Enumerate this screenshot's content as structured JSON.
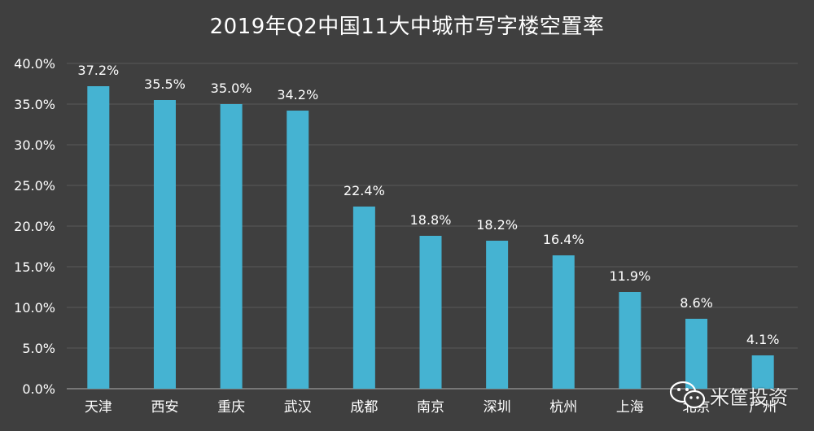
{
  "chart_data": {
    "type": "bar",
    "title": "2019年Q2中国11大中城市写字楼空置率",
    "categories": [
      "天津",
      "西安",
      "重庆",
      "武汉",
      "成都",
      "南京",
      "深圳",
      "杭州",
      "上海",
      "北京",
      "广州"
    ],
    "values": [
      37.2,
      35.5,
      35.0,
      34.2,
      22.4,
      18.8,
      18.2,
      16.4,
      11.9,
      8.6,
      4.1
    ],
    "data_labels": [
      "37.2%",
      "35.5%",
      "35.0%",
      "34.2%",
      "22.4%",
      "18.8%",
      "18.2%",
      "16.4%",
      "11.9%",
      "8.6%",
      "4.1%"
    ],
    "yticks": [
      0,
      5,
      10,
      15,
      20,
      25,
      30,
      35,
      40
    ],
    "ytick_labels": [
      "0.0%",
      "5.0%",
      "10.0%",
      "15.0%",
      "20.0%",
      "25.0%",
      "30.0%",
      "35.0%",
      "40.0%"
    ],
    "ylim": [
      0,
      40
    ],
    "xlabel": "",
    "ylabel": "",
    "grid": true
  },
  "colors": {
    "background": "#3f3f3f",
    "bar": "#45b3d2",
    "text": "#ffffff",
    "grid": "#5a5a5a"
  },
  "watermark": {
    "icon": "wechat-icon",
    "text": "米筐投资"
  }
}
